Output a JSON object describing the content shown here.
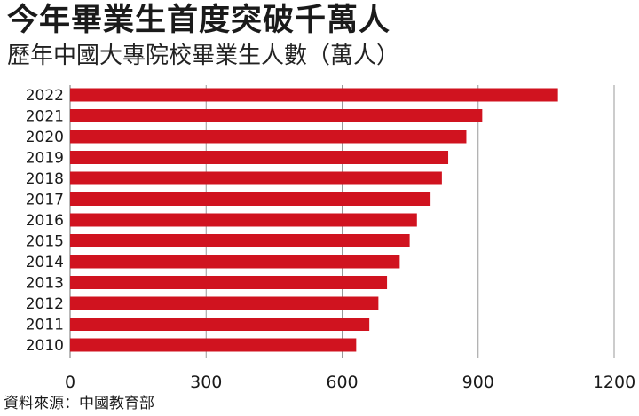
{
  "header": {
    "title": "今年畢業生首度突破千萬人",
    "subtitle": "歷年中國大專院校畢業生人數（萬人）"
  },
  "footer": {
    "source": "資料來源：中國教育部"
  },
  "colors": {
    "bar": "#d0131f",
    "grid": "#9a9a9a"
  },
  "chart_data": {
    "type": "bar",
    "orientation": "horizontal",
    "title": "今年畢業生首度突破千萬人",
    "subtitle": "歷年中國大專院校畢業生人數（萬人）",
    "categories": [
      "2022",
      "2021",
      "2020",
      "2019",
      "2018",
      "2017",
      "2016",
      "2015",
      "2014",
      "2013",
      "2012",
      "2011",
      "2010"
    ],
    "values": [
      1076,
      909,
      874,
      834,
      820,
      795,
      765,
      749,
      727,
      699,
      680,
      660,
      631
    ],
    "xlim": [
      0,
      1200
    ],
    "xticks": [
      0,
      300,
      600,
      900,
      1200
    ],
    "grid": true
  }
}
